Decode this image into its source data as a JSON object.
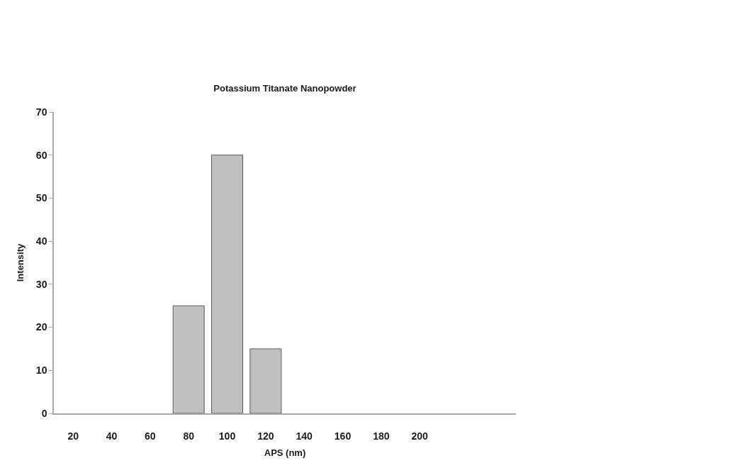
{
  "chart_data": {
    "type": "bar",
    "title": "Potassium Titanate Nanopowder",
    "xlabel": "APS (nm)",
    "ylabel": "Intensity",
    "categories": [
      "20",
      "40",
      "60",
      "80",
      "100",
      "120",
      "140",
      "160",
      "180",
      "200",
      null,
      null
    ],
    "values": [
      null,
      null,
      null,
      25,
      60,
      15,
      null,
      null,
      null,
      null,
      null,
      null
    ],
    "color": "#c0c0c0",
    "ylim": [
      0,
      70
    ],
    "yticks": [
      0,
      10,
      20,
      30,
      40,
      50,
      60,
      70
    ]
  }
}
